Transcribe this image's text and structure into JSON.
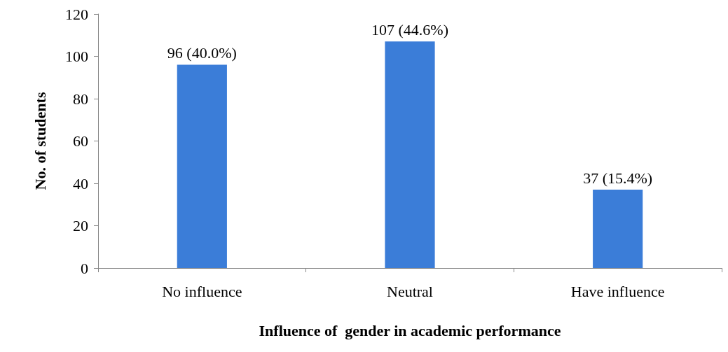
{
  "chart_data": {
    "type": "bar",
    "xlabel": "Influence of  gender in academic performance",
    "ylabel": "No. of students",
    "categories": [
      "No influence",
      "Neutral",
      "Have influence"
    ],
    "values": [
      96,
      107,
      37
    ],
    "value_labels": [
      "96 (40.0%)",
      "107 (44.6%)",
      "37 (15.4%)"
    ],
    "color": "#3b7dd8",
    "ylim": [
      0,
      120
    ],
    "yticks": [
      0,
      20,
      40,
      60,
      80,
      100,
      120
    ],
    "grid": false
  }
}
